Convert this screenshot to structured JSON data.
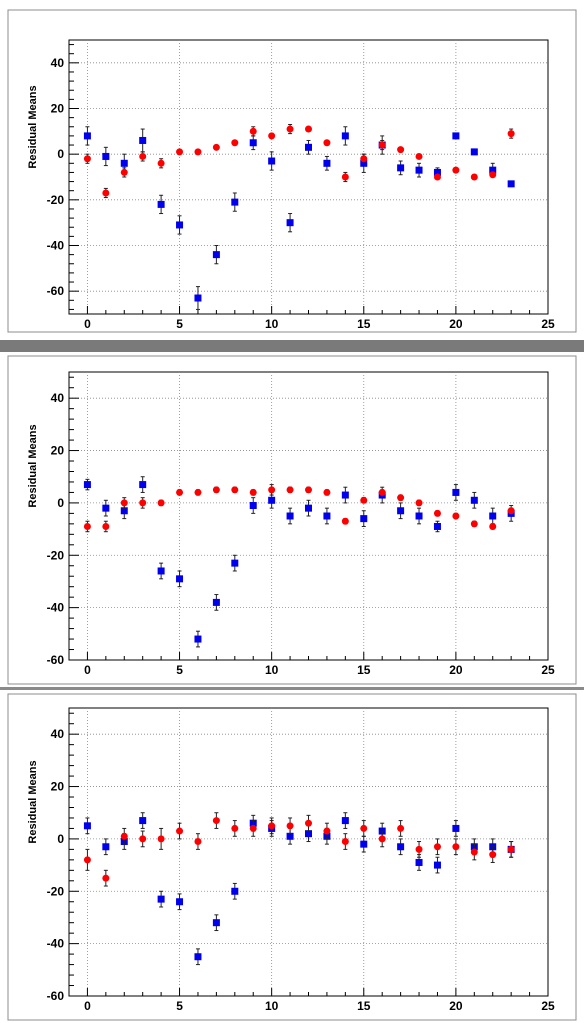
{
  "chart_data": [
    {
      "type": "scatter",
      "ylabel": "Residual Means",
      "xlabel": "",
      "xlim": [
        -1,
        25
      ],
      "ylim": [
        -70,
        50
      ],
      "xticks": [
        0,
        5,
        10,
        15,
        20,
        25
      ],
      "yticks": [
        -60,
        -40,
        -20,
        0,
        20,
        40
      ],
      "grid": true,
      "series": [
        {
          "color": "#0000ee",
          "marker": "square",
          "x": [
            0,
            1,
            2,
            3,
            4,
            5,
            6,
            7,
            8,
            9,
            10,
            11,
            12,
            13,
            14,
            15,
            16,
            17,
            18,
            19,
            20,
            21,
            22,
            23
          ],
          "y": [
            8,
            -1,
            -4,
            6,
            -22,
            -31,
            -63,
            -44,
            -21,
            5,
            -3,
            -30,
            3,
            -4,
            8,
            -4,
            4,
            -6,
            -7,
            -8,
            8,
            1,
            -7,
            -13
          ],
          "err": [
            4,
            4,
            4,
            5,
            4,
            4,
            5,
            4,
            4,
            3,
            4,
            4,
            3,
            3,
            4,
            4,
            4,
            3,
            3,
            2,
            0,
            0,
            3,
            1
          ]
        },
        {
          "color": "#ff0000",
          "marker": "circle",
          "x": [
            0,
            1,
            2,
            3,
            4,
            5,
            6,
            7,
            8,
            9,
            10,
            11,
            12,
            13,
            14,
            15,
            16,
            17,
            18,
            19,
            20,
            21,
            22,
            23
          ],
          "y": [
            -2,
            -17,
            -8,
            -1,
            -4,
            1,
            1,
            3,
            5,
            10,
            8,
            11,
            11,
            5,
            -10,
            -2,
            4,
            2,
            -1,
            -10,
            -7,
            -10,
            -9,
            9
          ],
          "err": [
            2,
            2,
            2,
            2,
            2,
            1,
            1,
            1,
            1,
            2,
            1,
            2,
            1,
            1,
            2,
            2,
            2,
            1,
            1,
            1,
            1,
            1,
            1,
            2
          ]
        }
      ]
    },
    {
      "type": "scatter",
      "ylabel": "Residual Means",
      "xlabel": "",
      "xlim": [
        -1,
        25
      ],
      "ylim": [
        -60,
        50
      ],
      "xticks": [
        0,
        5,
        10,
        15,
        20,
        25
      ],
      "yticks": [
        -60,
        -40,
        -20,
        0,
        20,
        40
      ],
      "grid": true,
      "series": [
        {
          "color": "#0000ee",
          "marker": "square",
          "x": [
            0,
            1,
            2,
            3,
            4,
            5,
            6,
            7,
            8,
            9,
            10,
            11,
            12,
            13,
            14,
            15,
            16,
            17,
            18,
            19,
            20,
            21,
            22,
            23
          ],
          "y": [
            7,
            -2,
            -3,
            7,
            -26,
            -29,
            -52,
            -38,
            -23,
            -1,
            1,
            -5,
            -2,
            -5,
            3,
            -6,
            3,
            -3,
            -5,
            -9,
            4,
            1,
            -5,
            -4
          ],
          "err": [
            2,
            3,
            3,
            3,
            3,
            3,
            3,
            3,
            3,
            3,
            3,
            3,
            3,
            3,
            3,
            3,
            3,
            3,
            3,
            2,
            3,
            3,
            3,
            3
          ]
        },
        {
          "color": "#ff0000",
          "marker": "circle",
          "x": [
            0,
            1,
            2,
            3,
            4,
            5,
            6,
            7,
            8,
            9,
            10,
            11,
            12,
            13,
            14,
            15,
            16,
            17,
            18,
            19,
            20,
            21,
            22,
            23
          ],
          "y": [
            -9,
            -9,
            0,
            0,
            0,
            4,
            4,
            5,
            5,
            4,
            5,
            5,
            5,
            4,
            -7,
            1,
            4,
            2,
            0,
            -4,
            -5,
            -8,
            -9,
            -3
          ],
          "err": [
            2,
            2,
            2,
            2,
            1,
            1,
            1,
            1,
            1,
            1,
            2,
            1,
            1,
            1,
            1,
            1,
            1,
            1,
            1,
            1,
            1,
            1,
            1,
            1
          ]
        }
      ]
    },
    {
      "type": "scatter",
      "ylabel": "Residual Means",
      "xlabel": "",
      "xlim": [
        -1,
        25
      ],
      "ylim": [
        -60,
        50
      ],
      "xticks": [
        0,
        5,
        10,
        15,
        20,
        25
      ],
      "yticks": [
        -60,
        -40,
        -20,
        0,
        20,
        40
      ],
      "grid": true,
      "series": [
        {
          "color": "#0000ee",
          "marker": "square",
          "x": [
            0,
            1,
            2,
            3,
            4,
            5,
            6,
            7,
            8,
            9,
            10,
            11,
            12,
            13,
            14,
            15,
            16,
            17,
            18,
            19,
            20,
            21,
            22,
            23
          ],
          "y": [
            5,
            -3,
            -1,
            7,
            -23,
            -24,
            -45,
            -32,
            -20,
            6,
            4,
            1,
            2,
            1,
            7,
            -2,
            3,
            -3,
            -9,
            -10,
            4,
            -3,
            -3,
            -4
          ],
          "err": [
            3,
            3,
            3,
            3,
            3,
            3,
            3,
            3,
            3,
            3,
            3,
            3,
            3,
            3,
            3,
            3,
            3,
            3,
            3,
            3,
            3,
            3,
            3,
            3
          ]
        },
        {
          "color": "#ff0000",
          "marker": "circle",
          "x": [
            0,
            1,
            2,
            3,
            4,
            5,
            6,
            7,
            8,
            9,
            10,
            11,
            12,
            13,
            14,
            15,
            16,
            17,
            18,
            19,
            20,
            21,
            22,
            23
          ],
          "y": [
            -8,
            -15,
            1,
            0,
            0,
            3,
            -1,
            7,
            4,
            4,
            5,
            5,
            6,
            3,
            -1,
            4,
            0,
            4,
            -4,
            -3,
            -3,
            -5,
            -6,
            -4
          ],
          "err": [
            4,
            3,
            3,
            3,
            4,
            3,
            3,
            3,
            3,
            3,
            3,
            3,
            3,
            3,
            3,
            3,
            3,
            3,
            3,
            3,
            3,
            3,
            3,
            3
          ]
        }
      ]
    }
  ]
}
